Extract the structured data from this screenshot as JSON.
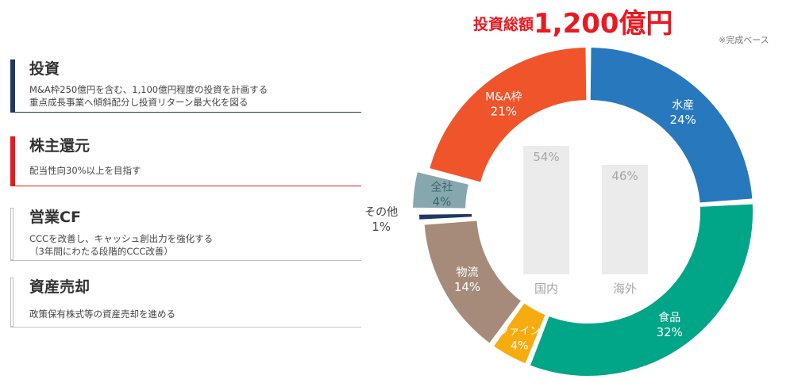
{
  "total": {
    "label": "投資総額",
    "amount": "1,200億円"
  },
  "note": "※完成ベース",
  "panels": [
    {
      "title": "投資",
      "lines": [
        "M&A枠250億円を含む、1,100億円程度の投資を計画する",
        "重点成長事業へ傾斜配分し投資リターン最大化を図る"
      ],
      "color": "#1f3864"
    },
    {
      "title": "株主還元",
      "lines": [
        "配当性向30%以上を目指す"
      ],
      "color": "#e8191f"
    },
    {
      "title": "営業CF",
      "lines": [
        "CCCを改善し、キャッシュ創出力を強化する",
        "（3年間にわたる段階的CCC改善）"
      ],
      "color": "#bfbfbf"
    },
    {
      "title": "資産売却",
      "lines": [
        "政策保有株式等の資産売却を進める"
      ],
      "color": "#bfbfbf"
    }
  ],
  "chart_data": {
    "type": "pie",
    "title": "",
    "slices": [
      {
        "label": "水産",
        "value": 24,
        "value_label": "24%",
        "color": "#2878bd"
      },
      {
        "label": "食品",
        "value": 32,
        "value_label": "32%",
        "color": "#00a687"
      },
      {
        "label": "ファイン",
        "value": 4,
        "value_label": "4%",
        "color": "#f6ac0e"
      },
      {
        "label": "物流",
        "value": 14,
        "value_label": "14%",
        "color": "#a68b7b"
      },
      {
        "label": "その他",
        "value": 1,
        "value_label": "1%",
        "color": "#1f3864"
      },
      {
        "label": "全社",
        "value": 4,
        "value_label": "4%",
        "color": "#87a7ae"
      },
      {
        "label": "M&A枠",
        "value": 21,
        "value_label": "21%",
        "color": "#f0542a"
      }
    ],
    "inner_bars": {
      "type": "bar",
      "categories": [
        "国内",
        "海外"
      ],
      "values": [
        54,
        46
      ],
      "value_labels": [
        "54%",
        "46%"
      ],
      "color": "#ebebeb"
    }
  }
}
